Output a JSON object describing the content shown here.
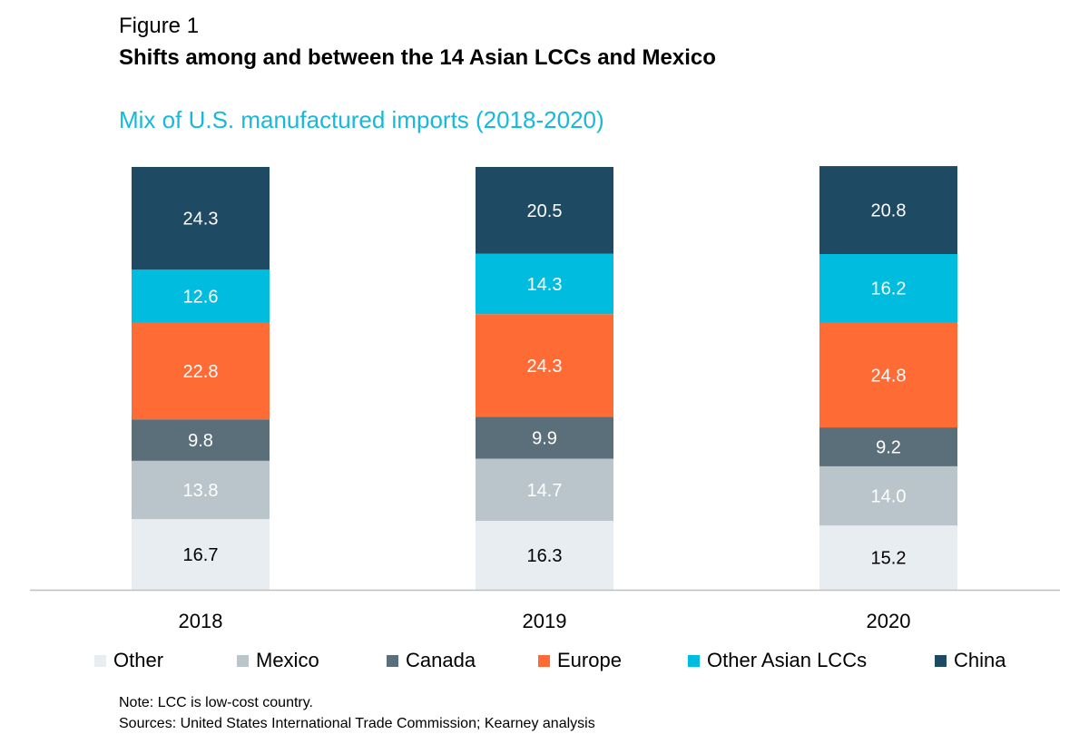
{
  "figure_label": "Figure 1",
  "figure_title": "Shifts among and between the 14 Asian LCCs and Mexico",
  "note": "Note: LCC is low-cost country.",
  "sources": "Sources: United States International Trade Commission; Kearney analysis",
  "chart_data": {
    "type": "bar",
    "stacked": true,
    "title": "Mix of U.S. manufactured imports (2018-2020)",
    "title_color": "#16b9d9",
    "categories": [
      "2018",
      "2019",
      "2020"
    ],
    "ylim": [
      0,
      100
    ],
    "grid": false,
    "legend_position": "bottom",
    "series": [
      {
        "name": "Other",
        "values": [
          16.7,
          16.3,
          15.2
        ],
        "labels": [
          "16.7",
          "16.3",
          "15.2"
        ],
        "color": "#e8edf2",
        "label_color": "#000000"
      },
      {
        "name": "Mexico",
        "values": [
          13.8,
          14.7,
          14.0
        ],
        "labels": [
          "13.8",
          "14.7",
          "14.0"
        ],
        "color": "#b9c4cb",
        "label_color": "#ffffff"
      },
      {
        "name": "Canada",
        "values": [
          9.8,
          9.9,
          9.2
        ],
        "labels": [
          "9.8",
          "9.9",
          "9.2"
        ],
        "color": "#5b6f7a",
        "label_color": "#ffffff"
      },
      {
        "name": "Europe",
        "values": [
          22.8,
          24.3,
          24.8
        ],
        "labels": [
          "22.8",
          "24.3",
          "24.8"
        ],
        "color": "#ff6b35",
        "label_color": "#ffffff"
      },
      {
        "name": "Other Asian LCCs",
        "values": [
          12.6,
          14.3,
          16.2
        ],
        "labels": [
          "12.6",
          "14.3",
          "16.2"
        ],
        "color": "#00bde0",
        "label_color": "#ffffff"
      },
      {
        "name": "China",
        "values": [
          24.3,
          20.5,
          20.8
        ],
        "labels": [
          "24.3",
          "20.5",
          "20.8"
        ],
        "color": "#1f4a63",
        "label_color": "#ffffff"
      }
    ]
  }
}
